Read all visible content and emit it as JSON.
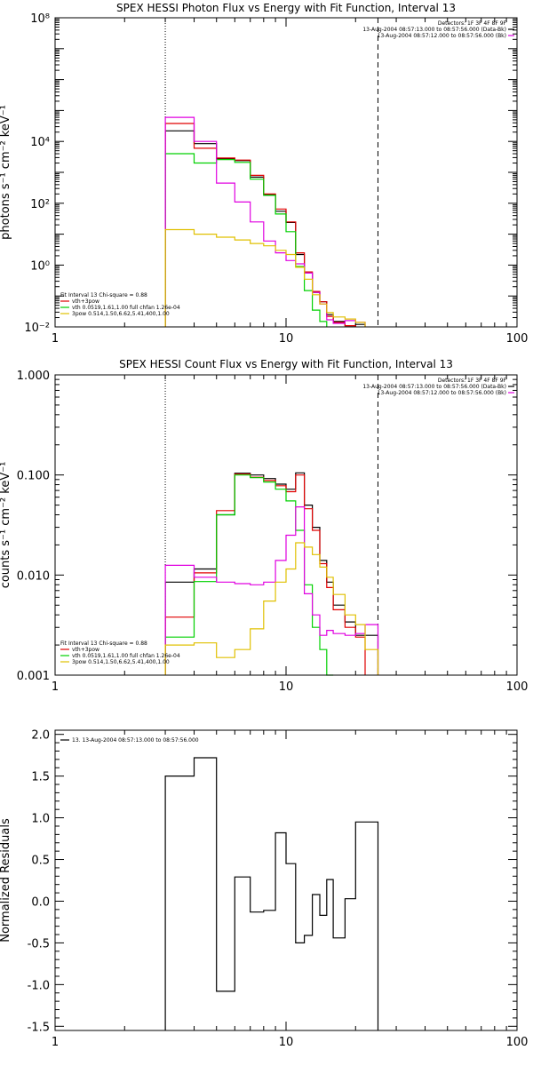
{
  "chart_data": [
    {
      "type": "line",
      "title": "SPEX HESSI Photon Flux vs Energy with Fit Function, Interval 13",
      "ylabel": "photons s⁻¹ cm⁻² keV⁻¹",
      "xscale": "log",
      "yscale": "log",
      "xlim": [
        1,
        100
      ],
      "ylim": [
        0.01,
        100000000
      ],
      "xticks": [
        {
          "v": 1,
          "t": "1"
        },
        {
          "v": 10,
          "t": "10"
        },
        {
          "v": 100,
          "t": "100"
        }
      ],
      "yticks": [
        {
          "v": 0.01,
          "t": "10⁻²"
        },
        {
          "v": 1,
          "t": "10⁰"
        },
        {
          "v": 100,
          "t": "10²"
        },
        {
          "v": 10000,
          "t": "10⁴"
        },
        {
          "v": 100000000,
          "t": "10⁸"
        }
      ],
      "dotted_vline": 3,
      "dashed_vline": 25,
      "header": [
        "Detectors: 1F 3F 4F 8F 9F",
        "13-Aug-2004 08:57:13.000 to 08:57:56.000 (Data-Bk)",
        "13-Aug-2004 08:57:12.000 to 08:57:56.000 (Bk)"
      ],
      "header_colors": [
        "",
        "#000000",
        "#e000e0"
      ],
      "legend": [
        "Fit Interval 13   Chi-square = 0.88",
        "vth+3pow",
        "vth 0.0519,1.61,1.00  full chfan 1.26e-04",
        "3pow 0.514,1.50,6.62,5.41,400,1.00"
      ],
      "legend_colors": [
        "",
        "#e00000",
        "#00d000",
        "#e0c000"
      ],
      "bin_edges": [
        3,
        4,
        5,
        6,
        7,
        8,
        9,
        10,
        11,
        12,
        13,
        14,
        15,
        16,
        18,
        20,
        22,
        25
      ],
      "series": [
        {
          "color": "#000000",
          "values": [
            22000,
            8500,
            2800,
            2400,
            700,
            190,
            55,
            24,
            2.2,
            0.55,
            0.13,
            0.065,
            0.025,
            0.015,
            0.011,
            0.012,
            null
          ]
        },
        {
          "color": "#e00000",
          "values": [
            38000,
            6000,
            2900,
            2500,
            800,
            200,
            65,
            25,
            2.5,
            0.6,
            0.14,
            0.065,
            0.022,
            0.014,
            0.011,
            null,
            null
          ]
        },
        {
          "color": "#00d000",
          "values": [
            4000,
            2000,
            2600,
            2100,
            600,
            180,
            45,
            12,
            0.9,
            0.15,
            0.035,
            0.015,
            null,
            null,
            null,
            null,
            null
          ]
        },
        {
          "color": "#e000e0",
          "values": [
            60000,
            10000,
            450,
            110,
            25,
            6,
            2.5,
            1.4,
            1.1,
            0.55,
            0.13,
            0.055,
            0.017,
            0.013,
            0.016,
            0.014,
            null
          ]
        },
        {
          "color": "#e0c000",
          "values": [
            14,
            10,
            8,
            6.5,
            5,
            4.2,
            3,
            2.2,
            0.85,
            0.35,
            0.11,
            0.055,
            0.029,
            0.021,
            0.018,
            0.014,
            null
          ]
        }
      ]
    },
    {
      "type": "line",
      "title": "SPEX HESSI Count Flux vs Energy with Fit Function, Interval 13",
      "ylabel": "counts s⁻¹ cm⁻² keV⁻¹",
      "xscale": "log",
      "yscale": "log",
      "xlim": [
        1,
        100
      ],
      "ylim": [
        0.001,
        1
      ],
      "xticks": [
        {
          "v": 1,
          "t": "1"
        },
        {
          "v": 10,
          "t": "10"
        },
        {
          "v": 100,
          "t": "100"
        }
      ],
      "yticks": [
        {
          "v": 0.001,
          "t": "0.001"
        },
        {
          "v": 0.01,
          "t": "0.010"
        },
        {
          "v": 0.1,
          "t": "0.100"
        },
        {
          "v": 1,
          "t": "1.000"
        }
      ],
      "dotted_vline": 3,
      "dashed_vline": 25,
      "header": [
        "Detectors: 1F 3F 4F 8F 9F",
        "13-Aug-2004 08:57:13.000 to 08:57:56.000 (Data-Bk)",
        "13-Aug-2004 08:57:12.000 to 08:57:56.000 (Bk)"
      ],
      "header_colors": [
        "",
        "#000000",
        "#e000e0"
      ],
      "legend": [
        "Fit Interval 13   Chi-square = 0.88",
        "vth+3pow",
        "vth 0.0519,1.61,1.00  full chfan 1.26e-04",
        "3pow 0.514,1.50,6.62,5.41,400,1.00"
      ],
      "legend_colors": [
        "",
        "#e00000",
        "#00d000",
        "#e0c000"
      ],
      "bin_edges": [
        3,
        4,
        5,
        6,
        7,
        8,
        9,
        10,
        11,
        12,
        13,
        14,
        15,
        16,
        18,
        20,
        22,
        25
      ],
      "series": [
        {
          "color": "#000000",
          "values": [
            0.0085,
            0.0115,
            0.04,
            0.104,
            0.1,
            0.092,
            0.081,
            0.072,
            0.105,
            0.05,
            0.03,
            0.014,
            0.0085,
            0.005,
            0.0034,
            0.0025,
            0.0025
          ]
        },
        {
          "color": "#e00000",
          "values": [
            0.0038,
            0.0105,
            0.044,
            0.102,
            0.095,
            0.088,
            0.078,
            0.068,
            0.1,
            0.046,
            0.028,
            0.013,
            0.0075,
            0.0045,
            0.003,
            0.0024,
            null
          ]
        },
        {
          "color": "#00d000",
          "values": [
            0.0024,
            0.0086,
            0.04,
            0.1,
            0.094,
            0.085,
            0.072,
            0.055,
            0.028,
            0.008,
            0.003,
            0.0018,
            0.001,
            null,
            null,
            null,
            null
          ]
        },
        {
          "color": "#e000e0",
          "values": [
            0.0125,
            0.0095,
            0.0085,
            0.0082,
            0.008,
            0.0085,
            0.014,
            0.025,
            0.048,
            0.0065,
            0.004,
            0.0025,
            0.0028,
            0.0026,
            0.0025,
            0.0026,
            0.0032
          ]
        },
        {
          "color": "#e0c000",
          "values": [
            0.002,
            0.0021,
            0.0015,
            0.0018,
            0.0029,
            0.0055,
            0.0085,
            0.0115,
            0.021,
            0.019,
            0.016,
            0.012,
            0.0095,
            0.0064,
            0.004,
            0.0032,
            0.0018
          ]
        }
      ]
    },
    {
      "type": "line",
      "title": "",
      "ylabel": "Normalized Residuals",
      "xscale": "log",
      "yscale": "linear",
      "xlim": [
        1,
        100
      ],
      "ylim": [
        -1.55,
        2.05
      ],
      "xticks": [
        {
          "v": 1,
          "t": "1"
        },
        {
          "v": 10,
          "t": "10"
        },
        {
          "v": 100,
          "t": "100"
        }
      ],
      "yticks": [
        {
          "v": -1.5,
          "t": "-1.5"
        },
        {
          "v": -1.0,
          "t": "-1.0"
        },
        {
          "v": -0.5,
          "t": "-0.5"
        },
        {
          "v": 0.0,
          "t": "0.0"
        },
        {
          "v": 0.5,
          "t": "0.5"
        },
        {
          "v": 1.0,
          "t": "1.0"
        },
        {
          "v": 1.5,
          "t": "1.5"
        },
        {
          "v": 2.0,
          "t": "2.0"
        }
      ],
      "legend": [
        "13. 13-Aug-2004 08:57:13.000 to 08:57:56.000"
      ],
      "legend_colors": [
        "#000000"
      ],
      "bin_edges": [
        3,
        4,
        5,
        6,
        7,
        8,
        9,
        10,
        11,
        12,
        13,
        14,
        15,
        16,
        18,
        20,
        22,
        25
      ],
      "series": [
        {
          "color": "#000000",
          "values": [
            1.5,
            1.72,
            -1.08,
            0.29,
            -0.13,
            -0.11,
            0.82,
            0.45,
            -0.5,
            -0.41,
            0.08,
            -0.17,
            0.26,
            -0.44,
            0.03,
            0.95,
            0.95
          ]
        }
      ]
    }
  ]
}
